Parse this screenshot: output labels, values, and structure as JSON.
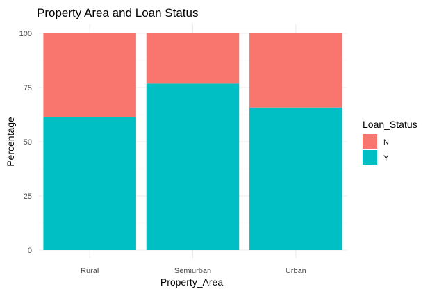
{
  "chart_data": {
    "type": "bar",
    "stacked": true,
    "title": "Property Area and Loan Status",
    "xlabel": "Property_Area",
    "ylabel": "Percentage",
    "categories": [
      "Rural",
      "Semiurban",
      "Urban"
    ],
    "ylim": [
      0,
      100
    ],
    "yticks": [
      0,
      25,
      50,
      75,
      100
    ],
    "grid": true,
    "legend": {
      "title": "Loan_Status",
      "position": "right"
    },
    "series": [
      {
        "name": "Y",
        "values": [
          61.5,
          76.8,
          65.8
        ],
        "color": "#00BFC4"
      },
      {
        "name": "N",
        "values": [
          38.5,
          23.2,
          34.2
        ],
        "color": "#F8766D"
      }
    ],
    "legend_order": [
      "N",
      "Y"
    ]
  }
}
